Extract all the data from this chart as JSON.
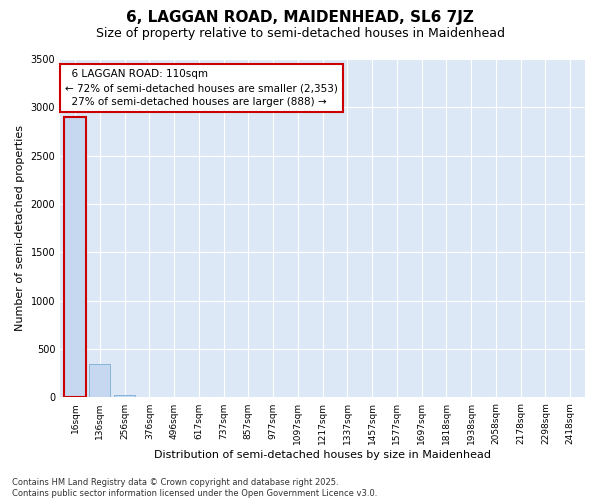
{
  "title": "6, LAGGAN ROAD, MAIDENHEAD, SL6 7JZ",
  "subtitle": "Size of property relative to semi-detached houses in Maidenhead",
  "xlabel": "Distribution of semi-detached houses by size in Maidenhead",
  "ylabel": "Number of semi-detached properties",
  "categories": [
    "16sqm",
    "136sqm",
    "256sqm",
    "376sqm",
    "496sqm",
    "617sqm",
    "737sqm",
    "857sqm",
    "977sqm",
    "1097sqm",
    "1217sqm",
    "1337sqm",
    "1457sqm",
    "1577sqm",
    "1697sqm",
    "1818sqm",
    "1938sqm",
    "2058sqm",
    "2178sqm",
    "2298sqm",
    "2418sqm"
  ],
  "values": [
    2900,
    350,
    30,
    3,
    1,
    0,
    0,
    0,
    0,
    0,
    0,
    0,
    0,
    0,
    0,
    0,
    0,
    0,
    0,
    0,
    0
  ],
  "bar_color": "#c5d8f0",
  "bar_edge_color": "#7aaed6",
  "highlight_bar_color": "#c5d8f0",
  "highlight_bar_edge": "#cc0000",
  "highlight_index": 0,
  "property_label": "6 LAGGAN ROAD: 110sqm",
  "smaller_text": "← 72% of semi-detached houses are smaller (2,353)",
  "larger_text": "27% of semi-detached houses are larger (888) →",
  "annotation_box_bg": "#ffffff",
  "annotation_box_edge": "#cc0000",
  "ylim": [
    0,
    3500
  ],
  "yticks": [
    0,
    500,
    1000,
    1500,
    2000,
    2500,
    3000,
    3500
  ],
  "plot_bg_color": "#dce8f5",
  "fig_bg_color": "#ffffff",
  "footer": "Contains HM Land Registry data © Crown copyright and database right 2025.\nContains public sector information licensed under the Open Government Licence v3.0.",
  "title_fontsize": 11,
  "subtitle_fontsize": 9,
  "axis_label_fontsize": 8,
  "tick_fontsize": 6.5,
  "annotation_fontsize": 7.5
}
